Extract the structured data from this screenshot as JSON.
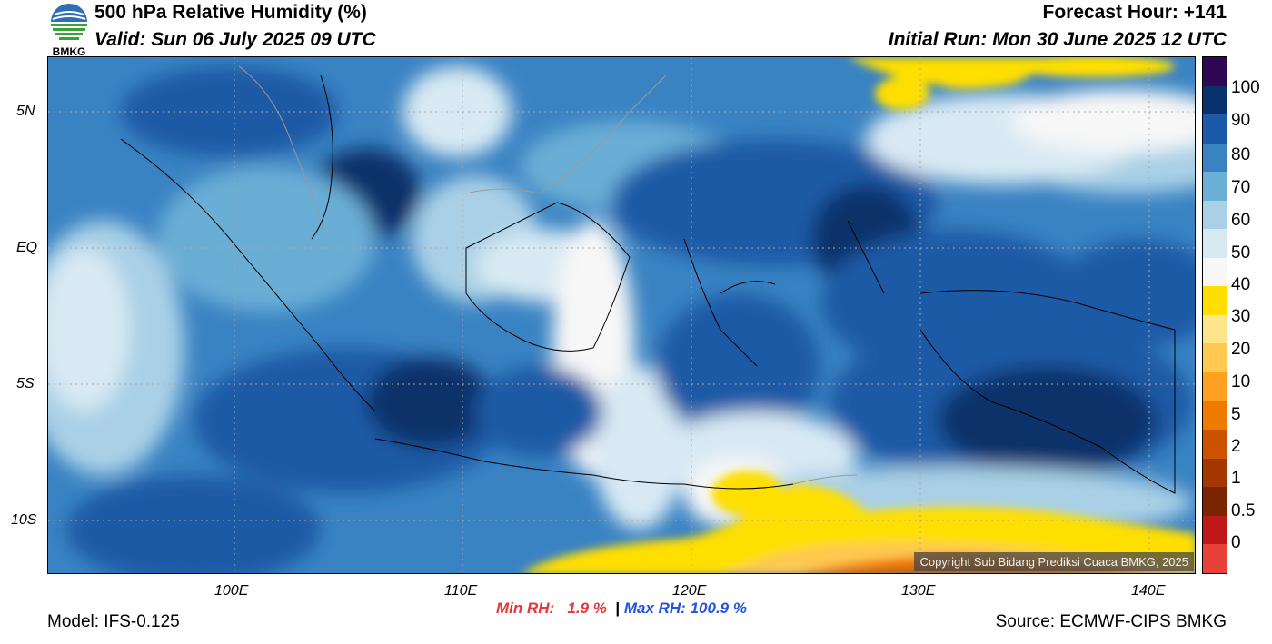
{
  "header": {
    "title": "500 hPa Relative Humidity (%)",
    "valid": "Valid: Sun 06 July 2025 09 UTC",
    "forecast_hour": "Forecast Hour: +141",
    "initial_run": "Initial Run: Mon 30 June 2025 12 UTC"
  },
  "logo": {
    "text": "BMKG",
    "icon": "bmkg-logo-icon"
  },
  "map": {
    "lon_ticks": [
      "100E",
      "110E",
      "120E",
      "130E",
      "140E"
    ],
    "lat_ticks": [
      "5N",
      "EQ",
      "5S",
      "10S"
    ],
    "copyright": "Copyright Sub Bidang Prediksi Cuaca BMKG, 2025"
  },
  "colorbar": {
    "levels": [
      "100",
      "90",
      "80",
      "70",
      "60",
      "50",
      "40",
      "30",
      "20",
      "10",
      "5",
      "2",
      "1",
      "0.5",
      "0"
    ],
    "colors": [
      "#2e0854",
      "#08306b",
      "#1b5aa6",
      "#3a83c3",
      "#6baed6",
      "#a9d0e6",
      "#d8e9f3",
      "#f7f7f7",
      "#ffdf00",
      "#ffe58a",
      "#ffc850",
      "#ffa020",
      "#ef7a00",
      "#cc5200",
      "#a33700",
      "#7a2400",
      "#c01818",
      "#e8403a"
    ]
  },
  "stats": {
    "min_label": "Min RH:",
    "min_value": "1.9 %",
    "separator": "|",
    "max_label": "Max RH:",
    "max_value": "100.9 %"
  },
  "footer": {
    "model": "Model: IFS-0.125",
    "source": "Source: ECMWF-CIPS BMKG"
  }
}
